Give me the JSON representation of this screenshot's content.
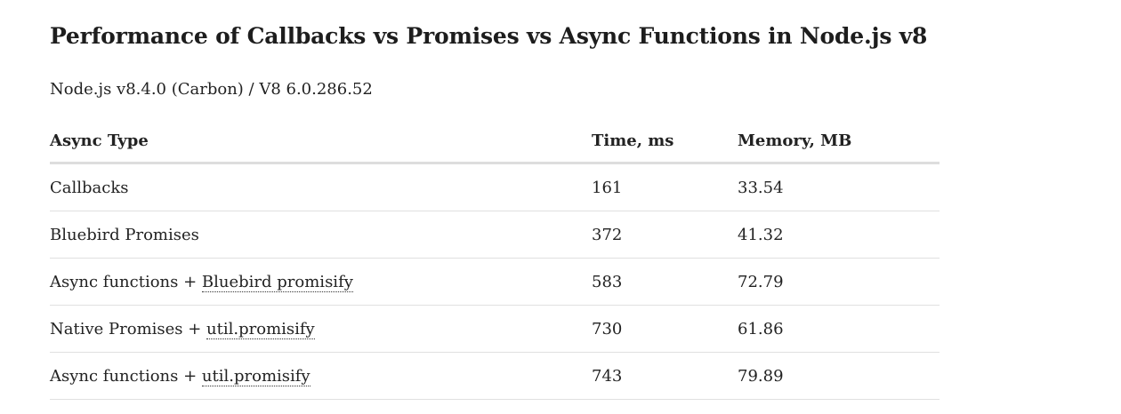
{
  "page": {
    "title": "Performance of Callbacks vs Promises vs Async Functions in Node.js v8",
    "subtitle": "Node.js v8.4.0 (Carbon) / V8 6.0.286.52"
  },
  "table": {
    "headers": [
      "Async Type",
      "Time, ms",
      "Memory, MB"
    ],
    "rows": [
      {
        "type_text": "Callbacks",
        "type_link": "",
        "time": "161",
        "memory": "33.54"
      },
      {
        "type_text": "Bluebird Promises",
        "type_link": "",
        "time": "372",
        "memory": "41.32"
      },
      {
        "type_text": "Async functions + ",
        "type_link": "Bluebird promisify",
        "time": "583",
        "memory": "72.79"
      },
      {
        "type_text": "Native Promises + ",
        "type_link": "util.promisify",
        "time": "730",
        "memory": "61.86"
      },
      {
        "type_text": "Async functions + ",
        "type_link": "util.promisify",
        "time": "743",
        "memory": "79.89"
      }
    ]
  }
}
